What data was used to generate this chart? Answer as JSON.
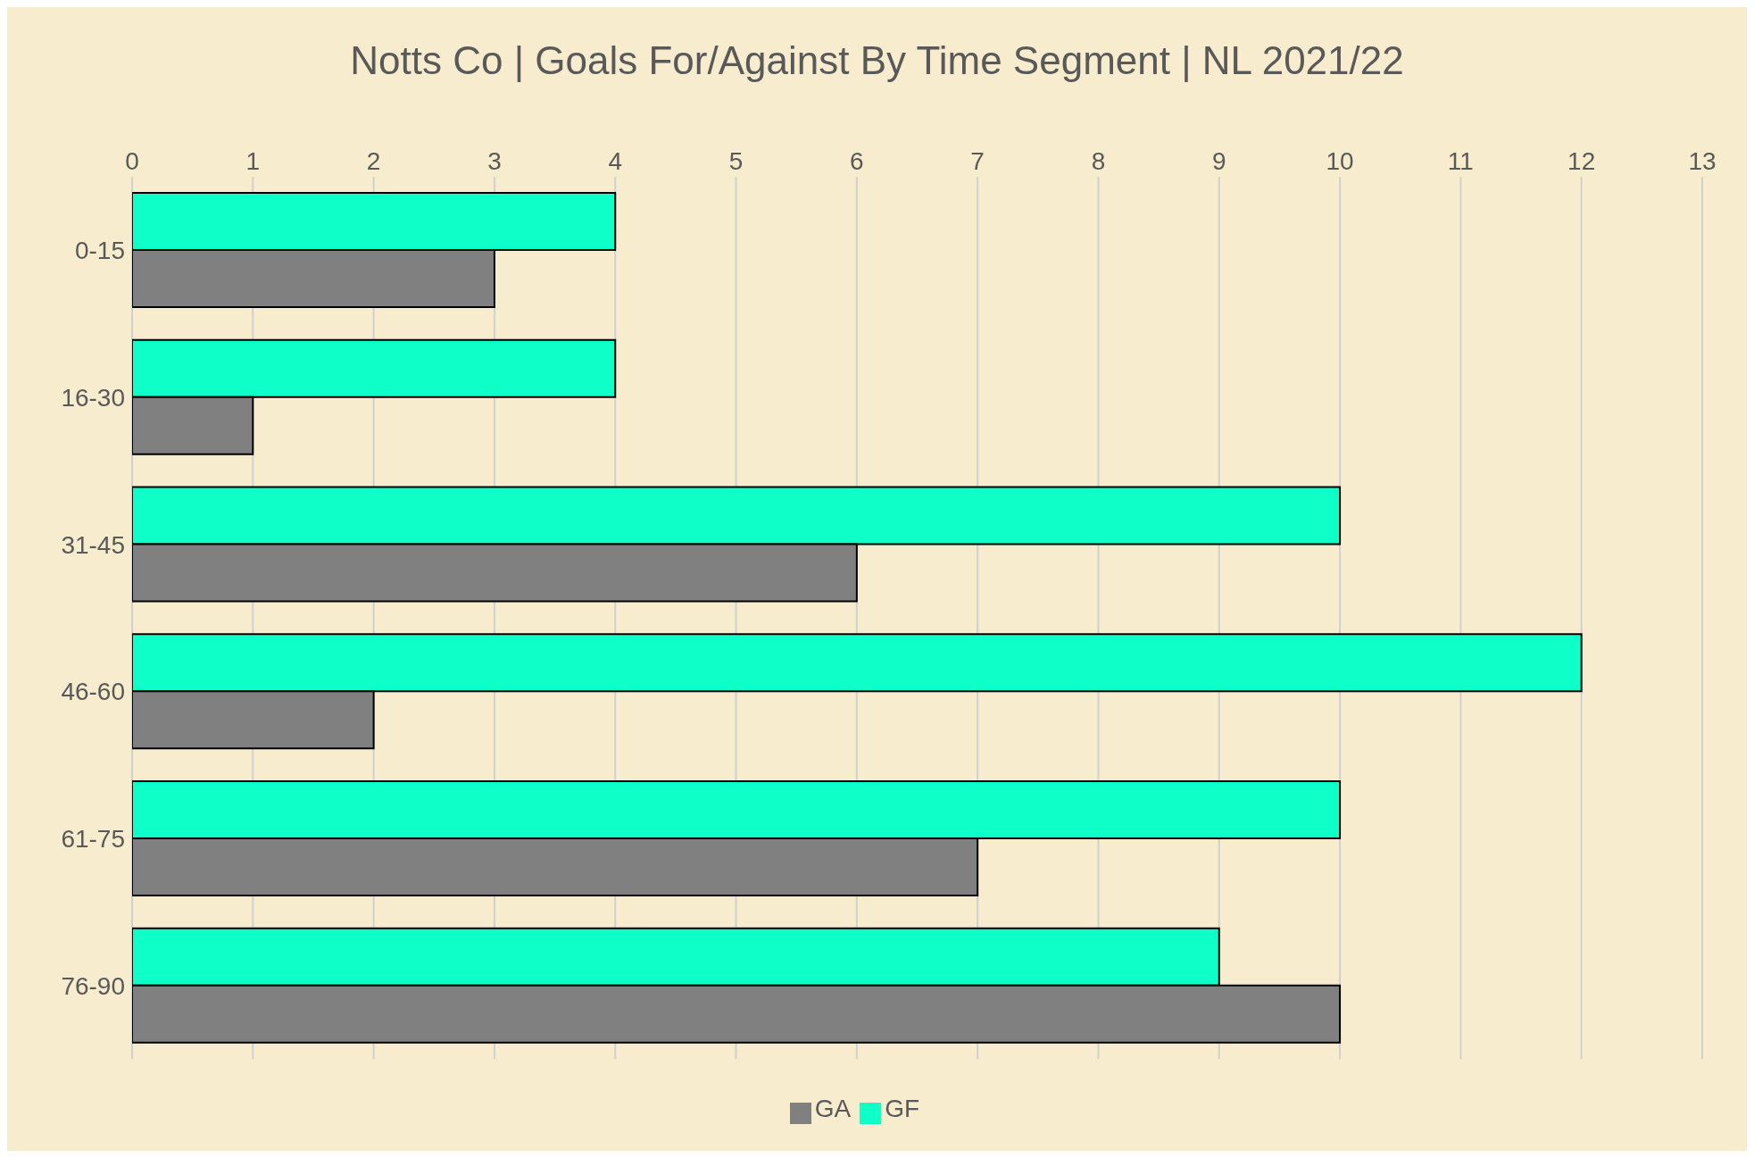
{
  "chart_data": {
    "type": "bar",
    "orientation": "horizontal",
    "title": "Notts Co | Goals For/Against By Time Segment | NL 2021/22",
    "categories": [
      "0-15",
      "16-30",
      "31-45",
      "46-60",
      "61-75",
      "76-90"
    ],
    "series": [
      {
        "name": "GF",
        "color": "#0effc8",
        "values": [
          4,
          4,
          10,
          12,
          10,
          9
        ]
      },
      {
        "name": "GA",
        "color": "#808080",
        "values": [
          3,
          1,
          6,
          2,
          7,
          10
        ]
      }
    ],
    "xlim": [
      0,
      13
    ],
    "xticks": [
      0,
      1,
      2,
      3,
      4,
      5,
      6,
      7,
      8,
      9,
      10,
      11,
      12,
      13
    ],
    "grid": "x",
    "legend": "bottom"
  }
}
